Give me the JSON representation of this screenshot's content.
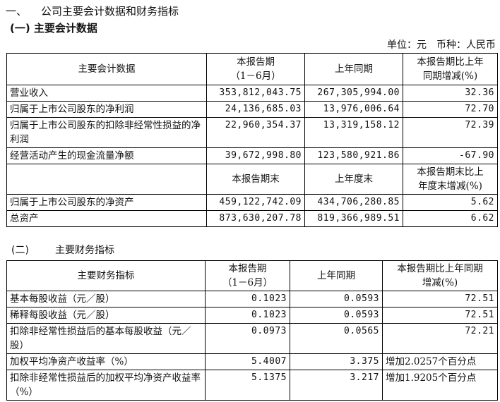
{
  "heading": {
    "number": "一、",
    "title": "公司主要会计数据和财务指标"
  },
  "section1": {
    "title": "(一) 主要会计数据",
    "unit": "单位：元　币种：人民币",
    "header": [
      "主要会计数据",
      "本报告期\n（1－6月）",
      "上年同期",
      "本报告期比上年\n同期增减(%)"
    ],
    "rows": [
      [
        "营业收入",
        "353,812,043.75",
        "267,305,994.00",
        "32.36"
      ],
      [
        "归属于上市公司股东的净利润",
        "24,136,685.03",
        "13,976,006.64",
        "72.70"
      ],
      [
        "归属于上市公司股东的扣除非经常性损益的净利润",
        "22,960,354.37",
        "13,319,158.12",
        "72.39"
      ],
      [
        "经营活动产生的现金流量净额",
        "39,672,998.80",
        "123,580,921.86",
        "-67.90"
      ]
    ],
    "header2": [
      "",
      "本报告期末",
      "上年度末",
      "本报告期末比上\n年度末增减(%)"
    ],
    "rows2": [
      [
        "归属于上市公司股东的净资产",
        "459,122,742.09",
        "434,706,280.85",
        "5.62"
      ],
      [
        "总资产",
        "873,630,207.78",
        "819,366,989.51",
        "6.62"
      ]
    ]
  },
  "section2": {
    "number": "(二)",
    "title": "主要财务指标",
    "header": [
      "主要财务指标",
      "本报告期\n（1－6月）",
      "上年同期",
      "本报告期比上年同期\n增减(%)"
    ],
    "rows": [
      [
        "基本每股收益（元／股）",
        "0.1023",
        "0.0593",
        "72.51"
      ],
      [
        "稀释每股收益（元／股）",
        "0.1023",
        "0.0593",
        "72.51"
      ],
      [
        "扣除非经常性损益后的基本每股收益（元／股）",
        "0.0973",
        "0.0565",
        "72.21"
      ],
      [
        "加权平均净资产收益率（%）",
        "5.4007",
        "3.375",
        "增加2.0257个百分点"
      ],
      [
        "扣除非经常性损益后的加权平均净资产收益率（%）",
        "5.1375",
        "3.217",
        "增加1.9205个百分点"
      ]
    ]
  }
}
